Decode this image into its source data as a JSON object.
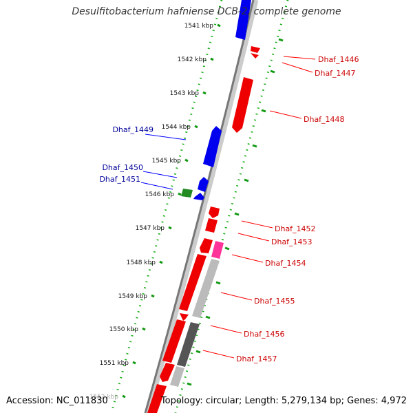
{
  "title": "Desulfitobacterium hafniense DCB-2, complete genome",
  "footer": {
    "accession": "Accession: NC_011830",
    "summary": "Topology: circular; Length: 5,279,134 bp; Genes: 4,972"
  },
  "colors": {
    "forward_gene": "#ff0000",
    "reverse_gene": "#0000ff",
    "rna_gene": "#228b22",
    "highlight_gene": "#ff3399",
    "backbone": "#888888",
    "tick": "#119911",
    "forward_label": "#cc0000",
    "reverse_label": "#000099"
  },
  "ticks": [
    "1541 kbp",
    "1542 kbp",
    "1543 kbp",
    "1544 kbp",
    "1545 kbp",
    "1546 kbp",
    "1547 kbp",
    "1548 kbp",
    "1549 kbp",
    "1550 kbp",
    "1551 kbp",
    "1552 kbp"
  ],
  "genes_reverse": [
    {
      "label": "Dhaf_1449",
      "color_key": "reverse_gene"
    },
    {
      "label": "Dhaf_1450",
      "color_key": "reverse_gene"
    },
    {
      "label": "Dhaf_1451",
      "color_key": "reverse_gene"
    }
  ],
  "genes_forward": [
    {
      "label": "Dhaf_1446",
      "color_key": "forward_gene"
    },
    {
      "label": "Dhaf_1447",
      "color_key": "forward_gene"
    },
    {
      "label": "Dhaf_1448",
      "color_key": "forward_gene"
    },
    {
      "label": "Dhaf_1452",
      "color_key": "forward_gene"
    },
    {
      "label": "Dhaf_1453",
      "color_key": "forward_gene"
    },
    {
      "label": "Dhaf_1454",
      "color_key": "highlight_gene"
    },
    {
      "label": "Dhaf_1455",
      "color_key": "forward_gene"
    },
    {
      "label": "Dhaf_1456",
      "color_key": "forward_gene"
    },
    {
      "label": "Dhaf_1457",
      "color_key": "forward_gene"
    }
  ]
}
